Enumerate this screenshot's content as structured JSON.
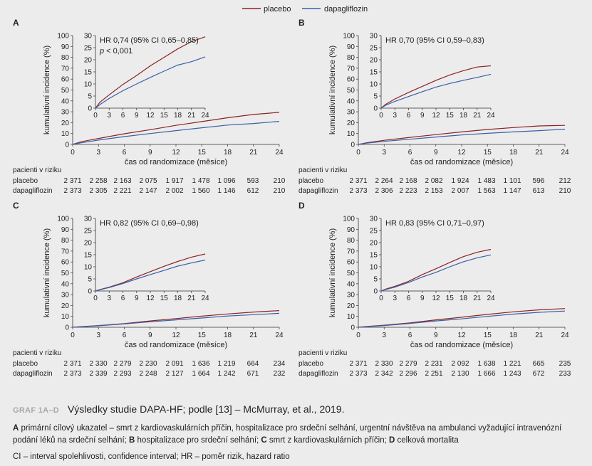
{
  "legend": {
    "placebo_label": "placebo",
    "dapa_label": "dapagliflozin"
  },
  "colors": {
    "placebo": "#8b2323",
    "dapagliflozin": "#3a5fa8"
  },
  "axis_labels": {
    "ylabel": "kumulativní incidence (%)",
    "xlabel": "čas od randomizace (měsíce)"
  },
  "risk_table_header": "pacienti v riziku",
  "chart_data": [
    {
      "panel": "A",
      "type": "line",
      "annotation": "HR 0,74 (95% CI 0,65–0,85)",
      "annotation2": "p < 0,001",
      "xlabel": "čas od randomizace (měsíce)",
      "ylabel": "kumulativní incidence (%)",
      "xlim": [
        0,
        24
      ],
      "ylim": [
        0,
        100
      ],
      "x_ticks": [
        0,
        3,
        6,
        9,
        12,
        15,
        18,
        21,
        24
      ],
      "y_ticks": [
        0,
        10,
        20,
        30,
        40,
        50,
        60,
        70,
        80,
        90,
        100
      ],
      "inset": {
        "ylim": [
          0,
          30
        ],
        "y_ticks": [
          0,
          5,
          10,
          15,
          20,
          25,
          30
        ],
        "x_ticks": [
          0,
          3,
          6,
          9,
          12,
          15,
          18,
          21,
          24
        ]
      },
      "series": [
        {
          "name": "placebo",
          "x": [
            0,
            1,
            3,
            6,
            9,
            12,
            15,
            18,
            21,
            24
          ],
          "y": [
            0,
            2.5,
            5.5,
            9.8,
            13.5,
            17.5,
            21,
            24.5,
            27.5,
            29.5
          ]
        },
        {
          "name": "dapagliflozin",
          "x": [
            0,
            1,
            3,
            6,
            9,
            12,
            15,
            18,
            21,
            24
          ],
          "y": [
            0,
            1.5,
            4,
            7.2,
            10,
            12.7,
            15.3,
            17.8,
            19.2,
            21.2
          ]
        }
      ],
      "risk_table": {
        "placebo": [
          "2 371",
          "2 258",
          "2 163",
          "2 075",
          "1 917",
          "1 478",
          "1 096",
          "593",
          "210"
        ],
        "dapagliflozin": [
          "2 373",
          "2 305",
          "2 221",
          "2 147",
          "2 002",
          "1 560",
          "1 146",
          "612",
          "210"
        ]
      }
    },
    {
      "panel": "B",
      "type": "line",
      "annotation": "HR 0,70 (95% CI 0,59–0,83)",
      "annotation2": "",
      "xlabel": "čas od randomizace (měsíce)",
      "ylabel": "kumulativní incidence (%)",
      "xlim": [
        0,
        24
      ],
      "ylim": [
        0,
        100
      ],
      "x_ticks": [
        0,
        3,
        6,
        9,
        12,
        15,
        18,
        21,
        24
      ],
      "y_ticks": [
        0,
        10,
        20,
        30,
        40,
        50,
        60,
        70,
        80,
        90,
        100
      ],
      "inset": {
        "ylim": [
          0,
          30
        ],
        "y_ticks": [
          0,
          5,
          10,
          15,
          20,
          25,
          30
        ],
        "x_ticks": [
          0,
          3,
          6,
          9,
          12,
          15,
          18,
          21,
          24
        ]
      },
      "series": [
        {
          "name": "placebo",
          "x": [
            0,
            1,
            3,
            6,
            9,
            12,
            15,
            18,
            21,
            24
          ],
          "y": [
            0,
            1.6,
            3.8,
            6.5,
            9,
            11.5,
            13.7,
            15.5,
            17,
            17.5
          ]
        },
        {
          "name": "dapagliflozin",
          "x": [
            0,
            1,
            3,
            6,
            9,
            12,
            15,
            18,
            21,
            24
          ],
          "y": [
            0,
            1.2,
            2.8,
            4.8,
            6.8,
            8.7,
            10.2,
            11.5,
            12.7,
            14
          ]
        }
      ],
      "risk_table": {
        "placebo": [
          "2 371",
          "2 264",
          "2 168",
          "2 082",
          "1 924",
          "1 483",
          "1 101",
          "596",
          "212"
        ],
        "dapagliflozin": [
          "2 373",
          "2 306",
          "2 223",
          "2 153",
          "2 007",
          "1 563",
          "1 147",
          "613",
          "210"
        ]
      }
    },
    {
      "panel": "C",
      "type": "line",
      "annotation": "HR 0,82 (95% CI 0,69–0,98)",
      "annotation2": "",
      "xlabel": "čas od randomizace (měsíce)",
      "ylabel": "kumulativní incidence (%)",
      "xlim": [
        0,
        24
      ],
      "ylim": [
        0,
        100
      ],
      "x_ticks": [
        0,
        3,
        6,
        9,
        12,
        15,
        18,
        21,
        24
      ],
      "y_ticks": [
        0,
        10,
        20,
        30,
        40,
        50,
        60,
        70,
        80,
        90,
        100
      ],
      "inset": {
        "ylim": [
          0,
          30
        ],
        "y_ticks": [
          0,
          5,
          10,
          15,
          20,
          25,
          30
        ],
        "x_ticks": [
          0,
          3,
          6,
          9,
          12,
          15,
          18,
          21,
          24
        ]
      },
      "series": [
        {
          "name": "placebo",
          "x": [
            0,
            1,
            3,
            6,
            9,
            12,
            15,
            18,
            21,
            24
          ],
          "y": [
            0,
            0.6,
            1.6,
            3.4,
            5.8,
            8,
            10.2,
            12.2,
            14,
            15.3
          ]
        },
        {
          "name": "dapagliflozin",
          "x": [
            0,
            1,
            3,
            6,
            9,
            12,
            15,
            18,
            21,
            24
          ],
          "y": [
            0,
            0.5,
            1.4,
            3.1,
            5,
            6.8,
            8.5,
            10.3,
            11.6,
            12.8
          ]
        }
      ],
      "risk_table": {
        "placebo": [
          "2 371",
          "2 330",
          "2 279",
          "2 230",
          "2 091",
          "1 636",
          "1 219",
          "664",
          "234"
        ],
        "dapagliflozin": [
          "2 373",
          "2 339",
          "2 293",
          "2 248",
          "2 127",
          "1 664",
          "1 242",
          "671",
          "232"
        ]
      }
    },
    {
      "panel": "D",
      "type": "line",
      "annotation": "HR 0,83 (95% CI 0,71–0,97)",
      "annotation2": "",
      "xlabel": "čas od randomizace (měsíce)",
      "ylabel": "kumulativní incidence (%)",
      "xlim": [
        0,
        24
      ],
      "ylim": [
        0,
        100
      ],
      "x_ticks": [
        0,
        3,
        6,
        9,
        12,
        15,
        18,
        21,
        24
      ],
      "y_ticks": [
        0,
        10,
        20,
        30,
        40,
        50,
        60,
        70,
        80,
        90,
        100
      ],
      "inset": {
        "ylim": [
          0,
          30
        ],
        "y_ticks": [
          0,
          5,
          10,
          15,
          20,
          25,
          30
        ],
        "x_ticks": [
          0,
          3,
          6,
          9,
          12,
          15,
          18,
          21,
          24
        ]
      },
      "series": [
        {
          "name": "placebo",
          "x": [
            0,
            1,
            3,
            6,
            9,
            12,
            15,
            18,
            21,
            24
          ],
          "y": [
            0,
            0.8,
            1.9,
            4,
            6.8,
            9.2,
            11.8,
            14.2,
            16,
            17.2
          ]
        },
        {
          "name": "dapagliflozin",
          "x": [
            0,
            1,
            3,
            6,
            9,
            12,
            15,
            18,
            21,
            24
          ],
          "y": [
            0,
            0.6,
            1.6,
            3.5,
            5.8,
            7.7,
            10,
            12.1,
            13.7,
            14.9
          ]
        }
      ],
      "risk_table": {
        "placebo": [
          "2 371",
          "2 330",
          "2 279",
          "2 231",
          "2 092",
          "1 638",
          "1 221",
          "665",
          "235"
        ],
        "dapagliflozin": [
          "2 373",
          "2 342",
          "2 296",
          "2 251",
          "2 130",
          "1 666",
          "1 243",
          "672",
          "233"
        ]
      }
    }
  ],
  "caption": {
    "graf": "GRAF 1A–D",
    "title": "Výsledky studie DAPA-HF; podle [13] – McMurray, et al., 2019.",
    "description": [
      {
        "bold": "A",
        "text": " primární cílový ukazatel – smrt z kardiovaskulárních příčin, hospitalizace pro srdeční selhání, urgentní návštěva na ambulanci vyžadující intravenózní podání léků na srdeční selhání; "
      },
      {
        "bold": "B",
        "text": " hospitalizace pro srdeční selhání; "
      },
      {
        "bold": "C",
        "text": " smrt z kardiovaskulárních příčin; "
      },
      {
        "bold": "D",
        "text": " celková mortalita"
      }
    ],
    "abbreviations": "CI – interval spolehlivosti, confidence interval; HR – poměr rizik, hazard ratio"
  }
}
